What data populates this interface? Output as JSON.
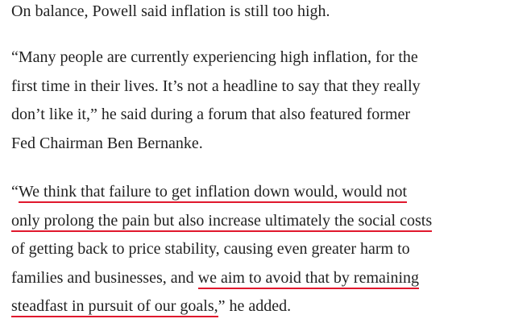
{
  "paragraphs": [
    {
      "lines": [
        [
          {
            "text": "On balance, Powell said inflation is still too high.",
            "underlined": false
          }
        ]
      ]
    },
    {
      "lines": [
        [
          {
            "text": "“Many people are currently experiencing high inflation, for the",
            "underlined": false
          }
        ],
        [
          {
            "text": "first time in their lives. It’s not a headline to say that they really",
            "underlined": false
          }
        ],
        [
          {
            "text": "don’t like it,” he said during a forum that also featured former",
            "underlined": false
          }
        ],
        [
          {
            "text": "Fed Chairman Ben Bernanke.",
            "underlined": false
          }
        ]
      ]
    },
    {
      "lines": [
        [
          {
            "text": "“",
            "underlined": false
          },
          {
            "text": "We think that failure to get inflation down would, would not",
            "underlined": true
          }
        ],
        [
          {
            "text": "only prolong the pain but also increase ultimately the social costs",
            "underlined": true
          }
        ],
        [
          {
            "text": "of getting back to price stability, causing even greater harm to",
            "underlined": false
          }
        ],
        [
          {
            "text": "families and businesses, and ",
            "underlined": false
          },
          {
            "text": "we aim to avoid that by remaining",
            "underlined": true
          }
        ],
        [
          {
            "text": "steadfast in pursuit of our goals,",
            "underlined": true
          },
          {
            "text": "” he added.",
            "underlined": false
          }
        ]
      ]
    }
  ]
}
